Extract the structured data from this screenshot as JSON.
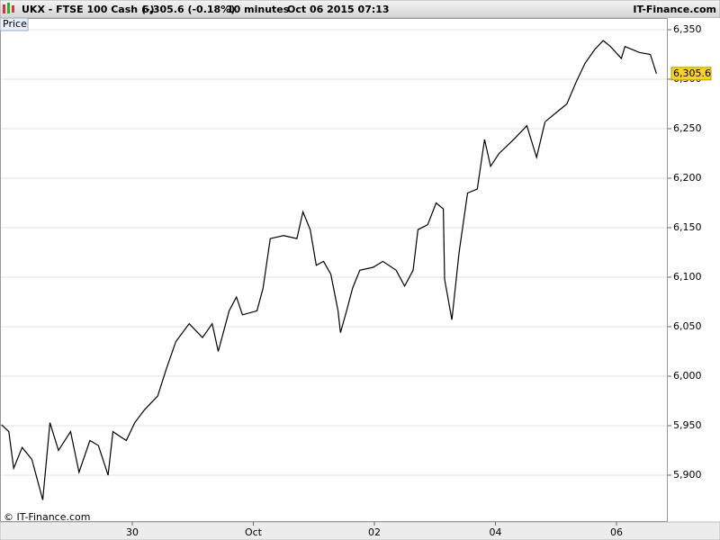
{
  "chart_data": {
    "type": "line",
    "title": "UKX - FTSE 100 Cash (-)",
    "subtitle": "6,305.6 (-0.18%)",
    "interval": "10 minutes",
    "timestamp": "Oct 06 2015 07:13",
    "brand": "IT-Finance.com",
    "legend_label": "Price",
    "credit": "© IT-Finance.com",
    "x": [
      -1.08,
      -1.02,
      -0.98,
      -0.91,
      -0.83,
      -0.74,
      -0.68,
      -0.61,
      -0.51,
      -0.44,
      -0.35,
      -0.28,
      -0.2,
      -0.16,
      -0.05,
      0.02,
      0.1,
      0.21,
      0.28,
      0.36,
      0.47,
      0.58,
      0.66,
      0.71,
      0.8,
      0.86,
      0.91,
      1.03,
      1.08,
      1.14,
      1.25,
      1.36,
      1.41,
      1.47,
      1.52,
      1.58,
      1.64,
      1.7,
      1.72,
      1.77,
      1.82,
      1.88,
      1.99,
      2.07,
      2.18,
      2.25,
      2.32,
      2.36,
      2.44,
      2.51,
      2.57,
      2.58,
      2.64,
      2.7,
      2.77,
      2.85,
      2.91,
      2.96,
      3.03,
      3.15,
      3.26,
      3.34,
      3.41,
      3.5,
      3.59,
      3.67,
      3.74,
      3.82,
      3.89,
      3.95,
      4.04,
      4.07,
      4.19,
      4.28,
      4.33
    ],
    "series": [
      {
        "name": "Price",
        "color": "#000000",
        "values": [
          5951,
          5944,
          5907,
          5928,
          5916,
          5875,
          5953,
          5925,
          5944,
          5903,
          5935,
          5930,
          5900,
          5944,
          5935,
          5953,
          5966,
          5980,
          6007,
          6035,
          6053,
          6039,
          6053,
          6025,
          6066,
          6080,
          6062,
          6066,
          6089,
          6139,
          6142,
          6139,
          6166,
          6148,
          6112,
          6116,
          6103,
          6066,
          6044,
          6066,
          6089,
          6107,
          6110,
          6116,
          6107,
          6091,
          6107,
          6148,
          6153,
          6175,
          6169,
          6098,
          6057,
          6125,
          6185,
          6189,
          6239,
          6212,
          6225,
          6239,
          6253,
          6221,
          6257,
          6266,
          6275,
          6298,
          6316,
          6330,
          6339,
          6333,
          6321,
          6333,
          6327,
          6325,
          6305.6
        ]
      }
    ],
    "last_value_label": "6,305.6",
    "xlim": [
      -1.093,
      4.424
    ],
    "xticks": [
      {
        "value": 0,
        "label": "30"
      },
      {
        "value": 1,
        "label": "Oct"
      },
      {
        "value": 2,
        "label": "02"
      },
      {
        "value": 3,
        "label": "04"
      },
      {
        "value": 4,
        "label": "06"
      }
    ],
    "ylim": [
      5852.7,
      6361.8
    ],
    "yticks": [
      {
        "value": 5900,
        "label": "5,900"
      },
      {
        "value": 5950,
        "label": "5,950"
      },
      {
        "value": 6000,
        "label": "6,000"
      },
      {
        "value": 6050,
        "label": "6,050"
      },
      {
        "value": 6100,
        "label": "6,100"
      },
      {
        "value": 6150,
        "label": "6,150"
      },
      {
        "value": 6200,
        "label": "6,200"
      },
      {
        "value": 6250,
        "label": "6,250"
      },
      {
        "value": 6300,
        "label": "6,300"
      },
      {
        "value": 6350,
        "label": "6,350"
      }
    ],
    "grid": true
  }
}
